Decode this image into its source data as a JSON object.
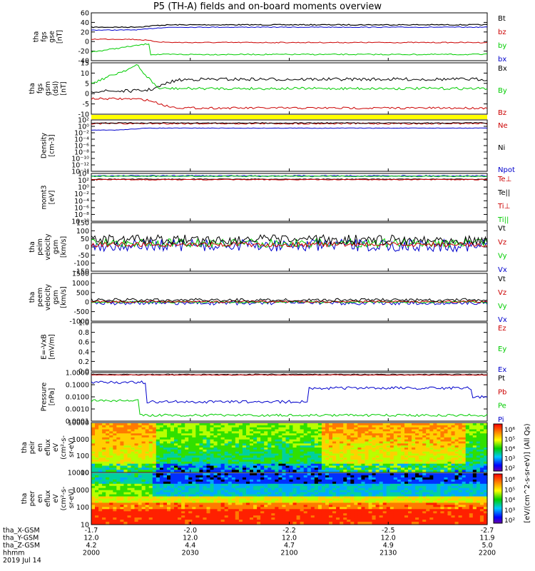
{
  "title": "P5 (TH-A) fields and on-board moments overview",
  "colors": {
    "black": "#000000",
    "red": "#cc0000",
    "green": "#00cc00",
    "blue": "#0000cc",
    "yellow": "#ffff00"
  },
  "chart_data": [
    {
      "type": "line",
      "ylabel": [
        "tha",
        "fgs",
        "gse",
        "[nT]"
      ],
      "yticks": [
        "60",
        "40",
        "20",
        "0",
        "-20",
        "-40"
      ],
      "legend": [
        {
          "label": "Bt",
          "color": "black"
        },
        {
          "label": "bz",
          "color": "red"
        },
        {
          "label": "by",
          "color": "green"
        },
        {
          "label": "bx",
          "color": "blue"
        }
      ]
    },
    {
      "type": "line",
      "ylabel": [
        "tha",
        "fgs",
        "gsm",
        "(dsl)",
        "[nT]"
      ],
      "yticks": [
        "15",
        "10",
        "5",
        "0",
        "-5",
        "-10"
      ],
      "legend": [
        {
          "label": "Bx",
          "color": "black"
        },
        {
          "label": "By",
          "color": "green"
        },
        {
          "label": "Bz",
          "color": "red"
        }
      ]
    },
    {
      "type": "line",
      "ylabel": [
        "Density",
        "[cm-3]"
      ],
      "yticks": [
        "10²",
        "10⁰",
        "10⁻²",
        "10⁻⁴",
        "10⁻⁶",
        "10⁻⁸",
        "10⁻¹⁰",
        "10⁻¹²",
        "10⁻¹⁴"
      ],
      "legend": [
        {
          "label": "Ne",
          "color": "red"
        },
        {
          "label": "Ni",
          "color": "black"
        },
        {
          "label": "Npot",
          "color": "blue"
        }
      ]
    },
    {
      "type": "line",
      "ylabel": [
        "momt3",
        "[eV]"
      ],
      "yticks": [
        "10⁴",
        "10²",
        "10⁰",
        "10⁻²",
        "10⁻⁴",
        "10⁻⁶",
        "10⁻⁸",
        "10⁻¹⁰"
      ],
      "legend": [
        {
          "label": "Te⊥",
          "color": "red"
        },
        {
          "label": "Te||",
          "color": "black"
        },
        {
          "label": "Ti⊥",
          "color": "red"
        },
        {
          "label": "Ti||",
          "color": "green"
        }
      ]
    },
    {
      "type": "line",
      "ylabel": [
        "tha",
        "peim",
        "velocity",
        "gsm",
        "[km/s]"
      ],
      "yticks": [
        "150",
        "100",
        "50",
        "0",
        "-50",
        "-100",
        "-150"
      ],
      "legend": [
        {
          "label": "Vt",
          "color": "black"
        },
        {
          "label": "Vz",
          "color": "red"
        },
        {
          "label": "Vy",
          "color": "green"
        },
        {
          "label": "Vx",
          "color": "blue"
        }
      ]
    },
    {
      "type": "line",
      "ylabel": [
        "tha",
        "peem",
        "velocity",
        "gsm",
        "[km/s]"
      ],
      "yticks": [
        "1500",
        "1000",
        "500",
        "0",
        "-500",
        "-1000"
      ],
      "legend": [
        {
          "label": "Vt",
          "color": "black"
        },
        {
          "label": "Vz",
          "color": "red"
        },
        {
          "label": "Vy",
          "color": "green"
        },
        {
          "label": "Vx",
          "color": "blue"
        }
      ]
    },
    {
      "type": "line",
      "ylabel": [
        "E=-VxB",
        "[mV/m]"
      ],
      "yticks": [
        "1.0",
        "0.8",
        "0.6",
        "0.4",
        "0.2",
        "0.0"
      ],
      "legend": [
        {
          "label": "Ez",
          "color": "red"
        },
        {
          "label": "Ey",
          "color": "green"
        },
        {
          "label": "Ex",
          "color": "blue"
        }
      ]
    },
    {
      "type": "line",
      "ylabel": [
        "Pressure",
        "[nPa]"
      ],
      "yticks": [
        "1.0000",
        "0.1000",
        "0.0100",
        "0.0010",
        "0.0001"
      ],
      "legend": [
        {
          "label": "Pt",
          "color": "black"
        },
        {
          "label": "Pb",
          "color": "red"
        },
        {
          "label": "Pe",
          "color": "green"
        },
        {
          "label": "Pi",
          "color": "blue"
        }
      ]
    },
    {
      "type": "heatmap",
      "ylabel": [
        "tha",
        "peir",
        "en",
        "eflux",
        "eV",
        "(cm²-s-",
        "sr-eV)"
      ],
      "yticks": [
        "10000",
        "1000",
        "100",
        "10"
      ],
      "colorbar_ticks": [
        "10⁶",
        "10⁵",
        "10⁴",
        "10³",
        "10²"
      ]
    },
    {
      "type": "heatmap",
      "ylabel": [
        "tha",
        "peer",
        "en",
        "eflux",
        "eV",
        "(cm²-s-",
        "sr-eV)"
      ],
      "yticks": [
        "10000",
        "1000",
        "100",
        "10"
      ],
      "colorbar_ticks": [
        "10⁶",
        "10⁵",
        "10⁴",
        "10³",
        "10²"
      ]
    }
  ],
  "colorbar_title": "[eV/(cm^2-s-sr-eV)] (All Qs)",
  "xaxis": {
    "rows": [
      {
        "name": "tha_X-GSM",
        "values": [
          "-1.7",
          "-2.0",
          "-2.2",
          "-2.5",
          "-2.7"
        ]
      },
      {
        "name": "tha_Y-GSM",
        "values": [
          "12.0",
          "12.0",
          "12.0",
          "12.0",
          "11.9"
        ]
      },
      {
        "name": "tha_Z-GSM",
        "values": [
          "4.2",
          "4.4",
          "4.7",
          "4.9",
          "5.0"
        ]
      },
      {
        "name": "hhmm",
        "values": [
          "2000",
          "2030",
          "2100",
          "2130",
          "2200"
        ]
      }
    ],
    "date": "2019 Jul 14"
  }
}
